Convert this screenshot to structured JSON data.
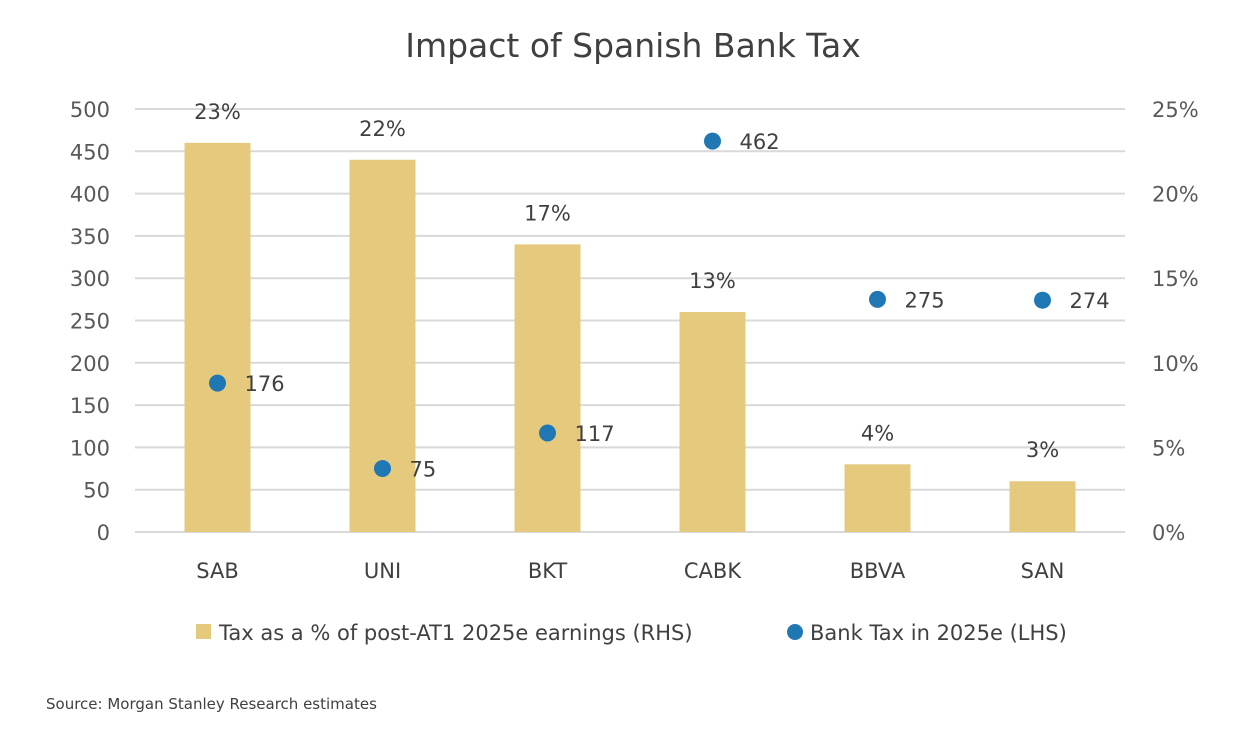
{
  "chart_data": {
    "type": "bar",
    "title": "Impact of Spanish Bank Tax",
    "categories": [
      "SAB",
      "UNI",
      "BKT",
      "CABK",
      "BBVA",
      "SAN"
    ],
    "series": [
      {
        "name": "Tax as a % of post-AT1 2025e earnings (RHS)",
        "type": "bar",
        "axis": "right",
        "values": [
          23,
          22,
          17,
          13,
          4,
          3
        ],
        "labels": [
          "23%",
          "22%",
          "17%",
          "13%",
          "4%",
          "3%"
        ],
        "color": "#E5C97D"
      },
      {
        "name": "Bank Tax in 2025e (LHS)",
        "type": "scatter",
        "axis": "left",
        "values": [
          176,
          75,
          117,
          462,
          275,
          274
        ],
        "labels": [
          "176",
          "75",
          "117",
          "462",
          "275",
          "274"
        ],
        "color": "#1F78B4"
      }
    ],
    "left_axis": {
      "ylim": [
        0,
        500
      ],
      "ticks": [
        "0",
        "50",
        "100",
        "150",
        "200",
        "250",
        "300",
        "350",
        "400",
        "450",
        "500"
      ]
    },
    "right_axis": {
      "ylim": [
        0,
        25
      ],
      "ticks": [
        "0%",
        "5%",
        "10%",
        "15%",
        "20%",
        "25%"
      ]
    },
    "xlabel": "",
    "ylabel": "",
    "grid": true,
    "legend_position": "bottom",
    "source": "Source: Morgan Stanley Research estimates"
  }
}
